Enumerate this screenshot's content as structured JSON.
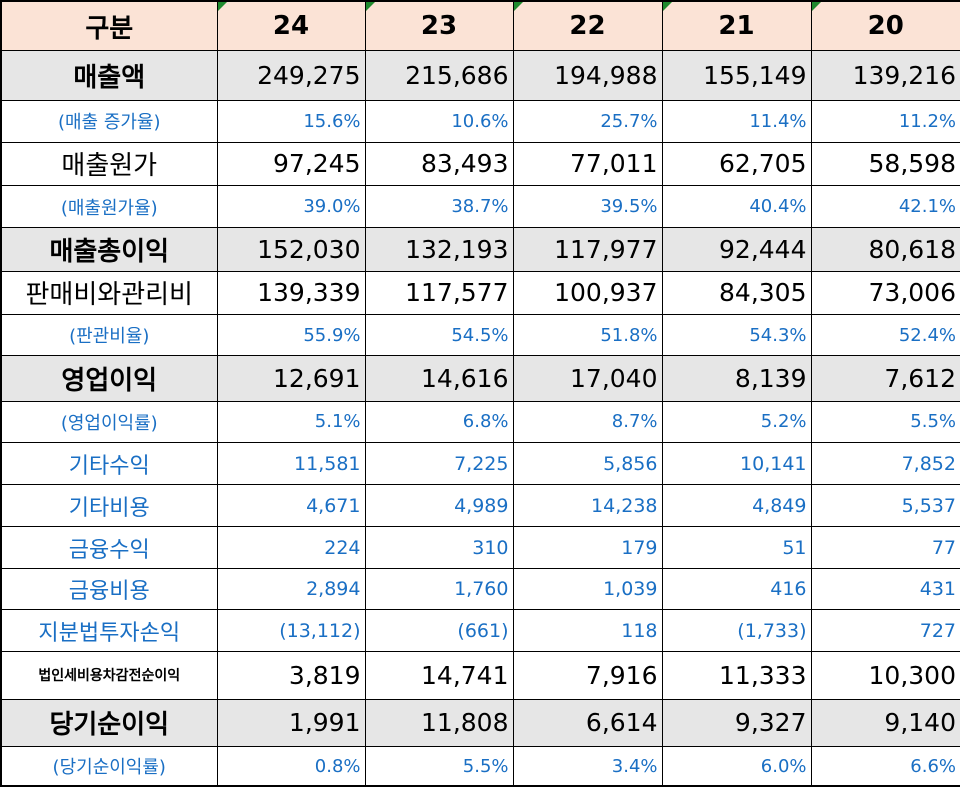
{
  "columns": {
    "label": "구분",
    "years": [
      "24",
      "23",
      "22",
      "21",
      "20"
    ]
  },
  "rows": [
    {
      "label": "매출액",
      "style": "major",
      "values": [
        "249,275",
        "215,686",
        "194,988",
        "155,149",
        "139,216"
      ]
    },
    {
      "label": "(매출 증가율)",
      "style": "blue",
      "values": [
        "15.6%",
        "10.6%",
        "25.7%",
        "11.4%",
        "11.2%"
      ]
    },
    {
      "label": "매출원가",
      "style": "plain",
      "values": [
        "97,245",
        "83,493",
        "77,011",
        "62,705",
        "58,598"
      ]
    },
    {
      "label": "(매출원가율)",
      "style": "blue",
      "values": [
        "39.0%",
        "38.7%",
        "39.5%",
        "40.4%",
        "42.1%"
      ]
    },
    {
      "label": "매출총이익",
      "style": "major",
      "values": [
        "152,030",
        "132,193",
        "117,977",
        "92,444",
        "80,618"
      ]
    },
    {
      "label": "판매비와관리비",
      "style": "plain",
      "values": [
        "139,339",
        "117,577",
        "100,937",
        "84,305",
        "73,006"
      ]
    },
    {
      "label": "(판관비율)",
      "style": "blue",
      "values": [
        "55.9%",
        "54.5%",
        "51.8%",
        "54.3%",
        "52.4%"
      ]
    },
    {
      "label": "영업이익",
      "style": "major",
      "values": [
        "12,691",
        "14,616",
        "17,040",
        "8,139",
        "7,612"
      ]
    },
    {
      "label": "(영업이익률)",
      "style": "blue",
      "values": [
        "5.1%",
        "6.8%",
        "8.7%",
        "5.2%",
        "5.5%"
      ]
    },
    {
      "label": "기타수익",
      "style": "blue-big",
      "values": [
        "11,581",
        "7,225",
        "5,856",
        "10,141",
        "7,852"
      ]
    },
    {
      "label": "기타비용",
      "style": "blue-big",
      "values": [
        "4,671",
        "4,989",
        "14,238",
        "4,849",
        "5,537"
      ]
    },
    {
      "label": "금융수익",
      "style": "blue-big",
      "values": [
        "224",
        "310",
        "179",
        "51",
        "77"
      ]
    },
    {
      "label": "금융비용",
      "style": "blue-big",
      "values": [
        "2,894",
        "1,760",
        "1,039",
        "416",
        "431"
      ]
    },
    {
      "label": "지분법투자손익",
      "style": "blue-big",
      "values": [
        "(13,112)",
        "(661)",
        "118",
        "(1,733)",
        "727"
      ]
    },
    {
      "label": "법인세비용차감전순이익",
      "style": "small-major",
      "values": [
        "3,819",
        "14,741",
        "7,916",
        "11,333",
        "10,300"
      ]
    },
    {
      "label": "당기순이익",
      "style": "major",
      "values": [
        "1,991",
        "11,808",
        "6,614",
        "9,327",
        "9,140"
      ]
    },
    {
      "label": "(당기순이익률)",
      "style": "blue",
      "values": [
        "0.8%",
        "5.5%",
        "3.4%",
        "6.0%",
        "6.6%"
      ]
    }
  ],
  "colors": {
    "header_bg": "#fbe3d6",
    "major_bg": "#e6e6e6",
    "blue_text": "#1a6fc4",
    "marker": "#1e8a2e"
  }
}
